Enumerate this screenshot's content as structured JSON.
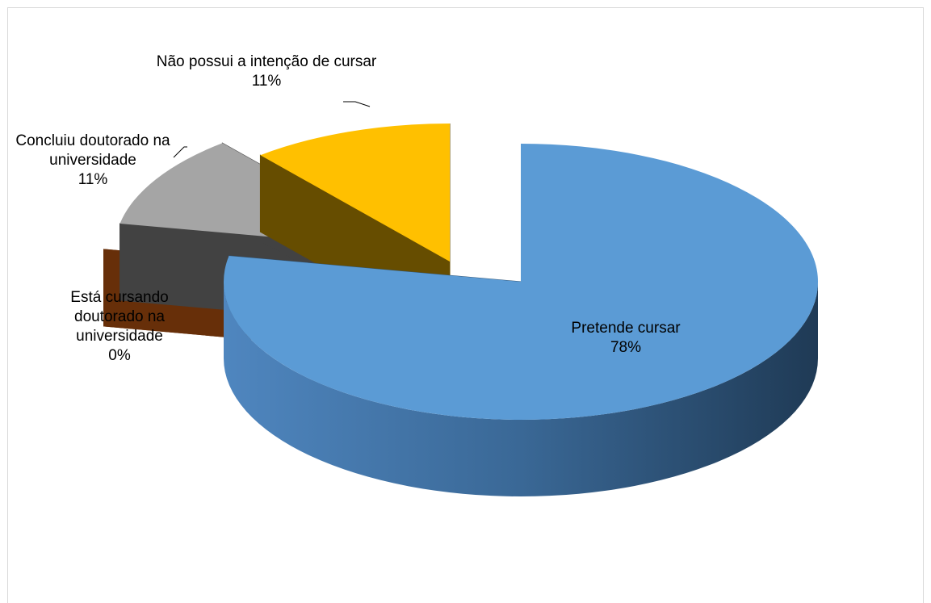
{
  "chart_data": {
    "type": "pie3d",
    "categories": [
      "Pretende cursar",
      "Está cursando doutorado na universidade",
      "Concluiu doutorado na universidade",
      "Não possui a intenção de cursar"
    ],
    "values": [
      78,
      0,
      11,
      11
    ],
    "value_labels": [
      "78%",
      "0%",
      "11%",
      "11%"
    ],
    "colors": [
      "#5b9bd5",
      "#843c0c",
      "#a5a5a5",
      "#ffc000"
    ]
  }
}
